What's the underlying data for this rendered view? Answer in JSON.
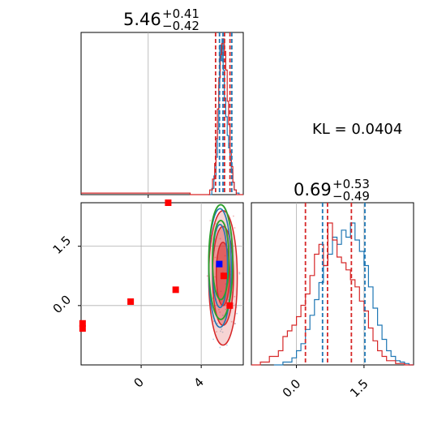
{
  "colors": {
    "first": "#d62728",
    "second": "#1f77b4",
    "contour_extra": "#2ca02c",
    "marker_red": "#ff0000",
    "marker_blue": "#0000ff",
    "grid": "#b0b0b0"
  },
  "kl_label": "KL = 0.0404",
  "chart_data": [
    {
      "panel": "top-left",
      "type": "histogram",
      "title": {
        "median": "5.46",
        "plus": "+0.41",
        "minus": "−0.42"
      },
      "xlim": [
        -4.8,
        6.8
      ],
      "grid_x": [
        0
      ],
      "quantiles_red": [
        4.82,
        5.46,
        5.85
      ],
      "quantiles_blue": [
        5.1,
        5.35,
        5.98
      ],
      "series_red": {
        "x": [
          -4.8,
          3.0,
          4.4,
          4.6,
          4.75,
          4.85,
          4.95,
          5.05,
          5.15,
          5.25,
          5.35,
          5.45,
          5.55,
          5.65,
          5.75,
          5.85,
          5.95,
          6.05,
          6.15,
          6.3,
          6.8
        ],
        "y": [
          0.01,
          0.0,
          0.03,
          0.1,
          0.2,
          0.36,
          0.55,
          0.75,
          0.9,
          0.97,
          1.0,
          0.92,
          0.8,
          0.6,
          0.45,
          0.28,
          0.18,
          0.08,
          0.03,
          0.0,
          0.0
        ]
      },
      "series_blue": {
        "x": [
          4.3,
          4.55,
          4.7,
          4.85,
          4.95,
          5.05,
          5.12,
          5.2,
          5.28,
          5.36,
          5.45,
          5.55,
          5.65,
          5.75,
          5.85,
          5.95,
          6.05,
          6.15,
          6.3,
          6.5
        ],
        "y": [
          0.0,
          0.04,
          0.12,
          0.24,
          0.42,
          0.7,
          0.96,
          0.86,
          1.0,
          0.8,
          0.62,
          0.5,
          0.38,
          0.3,
          0.22,
          0.14,
          0.08,
          0.03,
          0.01,
          0.0
        ]
      }
    },
    {
      "panel": "bottom-left",
      "type": "scatter",
      "xlim": [
        -4.0,
        6.8
      ],
      "ylim": [
        -1.5,
        2.6
      ],
      "grid_x": [
        0,
        4
      ],
      "grid_y": [
        0.0,
        1.5
      ],
      "x_ticks": [
        {
          "v": 0,
          "label": "0"
        },
        {
          "v": 4,
          "label": "4"
        }
      ],
      "y_ticks": [
        {
          "v": 0.0,
          "label": "0.0"
        },
        {
          "v": 1.5,
          "label": "1.5"
        }
      ],
      "red_markers": [
        {
          "x": 1.8,
          "y": 2.6
        },
        {
          "x": -0.7,
          "y": 0.1
        },
        {
          "x": 2.3,
          "y": 0.4
        },
        {
          "x": -3.9,
          "y": -0.45
        },
        {
          "x": -3.9,
          "y": -0.58
        },
        {
          "x": 5.5,
          "y": 0.75
        },
        {
          "x": 5.9,
          "y": 0.0
        }
      ],
      "blue_markers": [
        {
          "x": 5.2,
          "y": 1.05
        }
      ],
      "contours_red": [
        {
          "cx": 5.45,
          "cy": 0.7,
          "rx": 0.95,
          "ry": 1.7
        },
        {
          "cx": 5.45,
          "cy": 0.75,
          "rx": 0.7,
          "ry": 1.25
        },
        {
          "cx": 5.45,
          "cy": 0.8,
          "rx": 0.45,
          "ry": 0.8
        }
      ],
      "contours_blue": [
        {
          "cx": 5.25,
          "cy": 0.95,
          "rx": 0.75,
          "ry": 1.5
        },
        {
          "cx": 5.25,
          "cy": 1.0,
          "rx": 0.5,
          "ry": 1.05
        }
      ],
      "contours_green": [
        {
          "cx": 5.3,
          "cy": 1.1,
          "rx": 0.8,
          "ry": 1.45
        },
        {
          "cx": 5.3,
          "cy": 1.15,
          "rx": 0.55,
          "ry": 1.0
        }
      ]
    },
    {
      "panel": "bottom-right",
      "type": "histogram",
      "title": {
        "median": "0.69",
        "plus": "+0.53",
        "minus": "−0.49"
      },
      "xlim": [
        -1.0,
        2.6
      ],
      "grid_x": [
        0.0,
        1.5
      ],
      "x_ticks": [
        {
          "v": 0.0,
          "label": "0.0"
        },
        {
          "v": 1.5,
          "label": "1.5"
        }
      ],
      "quantiles_red": [
        0.2,
        0.69,
        1.22
      ],
      "quantiles_blue": [
        0.58,
        1.52
      ],
      "series_red": {
        "x": [
          -1.0,
          -0.8,
          -0.6,
          -0.4,
          -0.3,
          -0.2,
          -0.1,
          0.0,
          0.1,
          0.2,
          0.3,
          0.4,
          0.5,
          0.6,
          0.7,
          0.8,
          0.9,
          1.0,
          1.1,
          1.2,
          1.3,
          1.4,
          1.5,
          1.6,
          1.7,
          1.8,
          1.9,
          2.0,
          2.2,
          2.4,
          2.6
        ],
        "y": [
          0.0,
          0.02,
          0.06,
          0.1,
          0.2,
          0.24,
          0.28,
          0.34,
          0.42,
          0.5,
          0.63,
          0.78,
          0.85,
          0.7,
          1.0,
          0.88,
          0.76,
          0.72,
          0.67,
          0.6,
          0.55,
          0.45,
          0.38,
          0.26,
          0.17,
          0.1,
          0.06,
          0.03,
          0.01,
          0.0,
          0.0
        ]
      },
      "series_blue": {
        "x": [
          -0.5,
          -0.3,
          -0.1,
          0.0,
          0.1,
          0.2,
          0.3,
          0.4,
          0.5,
          0.6,
          0.7,
          0.8,
          0.9,
          1.0,
          1.1,
          1.2,
          1.3,
          1.4,
          1.5,
          1.6,
          1.7,
          1.8,
          1.9,
          2.0,
          2.1,
          2.2,
          2.3,
          2.4,
          2.5,
          2.6
        ],
        "y": [
          0.0,
          0.02,
          0.05,
          0.1,
          0.15,
          0.25,
          0.35,
          0.46,
          0.58,
          0.7,
          0.78,
          0.9,
          0.85,
          0.95,
          0.9,
          1.0,
          0.88,
          0.8,
          0.7,
          0.55,
          0.4,
          0.28,
          0.18,
          0.1,
          0.06,
          0.03,
          0.02,
          0.01,
          0.0,
          0.0
        ]
      }
    }
  ]
}
